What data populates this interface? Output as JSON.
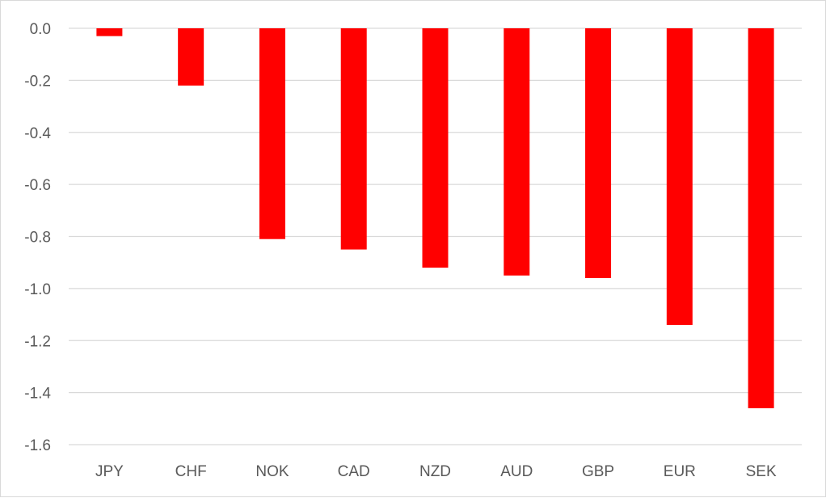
{
  "chart_data": {
    "type": "bar",
    "title": "",
    "xlabel": "",
    "ylabel": "",
    "categories": [
      "JPY",
      "CHF",
      "NOK",
      "CAD",
      "NZD",
      "AUD",
      "GBP",
      "EUR",
      "SEK"
    ],
    "values": [
      -0.03,
      -0.22,
      -0.81,
      -0.85,
      -0.92,
      -0.95,
      -0.96,
      -1.14,
      -1.46
    ],
    "ylim": [
      -1.6,
      0.0
    ],
    "yticks": [
      "0.0",
      "-0.2",
      "-0.4",
      "-0.6",
      "-0.8",
      "-1.0",
      "-1.2",
      "-1.4",
      "-1.6"
    ],
    "bar_color": "#ff0000",
    "grid": true,
    "legend": "none"
  }
}
